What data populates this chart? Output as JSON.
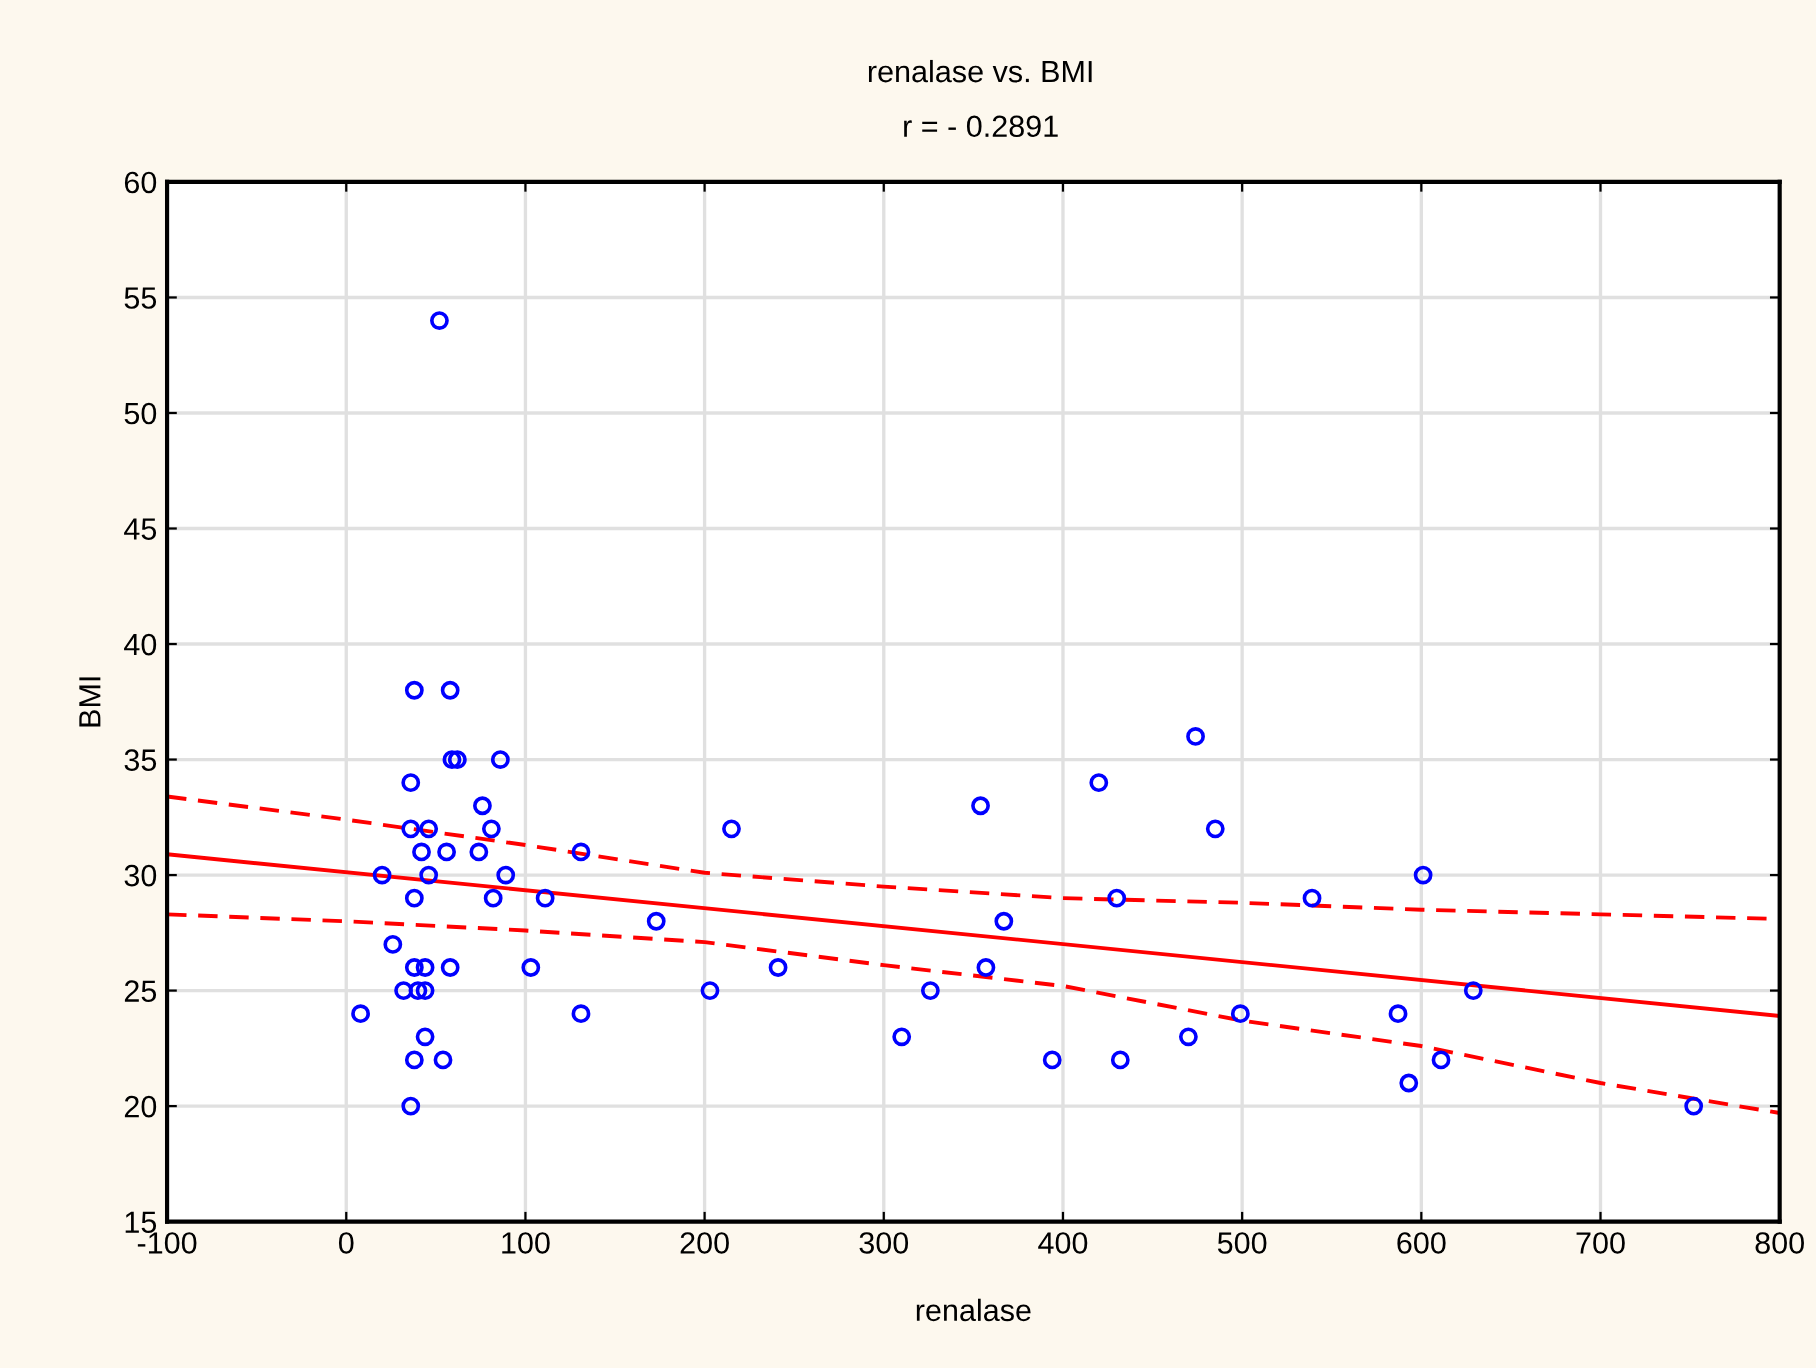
{
  "chart_data": {
    "type": "scatter",
    "title": "renalase vs. BMI",
    "subtitle": "r = - 0.2891",
    "xlabel": "renalase",
    "ylabel": "BMI",
    "xlim": [
      -100,
      800
    ],
    "xticks": [
      -100,
      0,
      100,
      200,
      300,
      400,
      500,
      600,
      700,
      800
    ],
    "ylim": [
      15,
      60
    ],
    "yticks": [
      15,
      20,
      25,
      30,
      35,
      40,
      45,
      50,
      55,
      60
    ],
    "grid": true,
    "marker": "circle",
    "series": [
      {
        "color": "#0000ff",
        "x": [
          52,
          38,
          58,
          59,
          62,
          86,
          36,
          76,
          36,
          46,
          81,
          42,
          56,
          74,
          131,
          20,
          46,
          89,
          38,
          82,
          111,
          26,
          38,
          44,
          58,
          103,
          32,
          40,
          44,
          8,
          131,
          44,
          38,
          54,
          36,
          173,
          215,
          203,
          241,
          310,
          326,
          354,
          367,
          357,
          394,
          420,
          430,
          432,
          470,
          474,
          485,
          499,
          539,
          601,
          587,
          593,
          611,
          629,
          752
        ],
        "values": [
          54,
          38,
          38,
          35,
          35,
          35,
          34,
          33,
          32,
          32,
          32,
          31,
          31,
          31,
          31,
          30,
          30,
          30,
          29,
          29,
          29,
          27,
          26,
          26,
          26,
          26,
          25,
          25,
          25,
          24,
          24,
          23,
          22,
          22,
          20,
          28,
          32,
          25,
          26,
          23,
          25,
          33,
          28,
          26,
          22,
          34,
          29,
          22,
          23,
          36,
          32,
          24,
          29,
          30,
          24,
          21,
          22,
          25,
          20
        ]
      },
      {
        "type": "line",
        "color": "#ff0000",
        "line_style": "solid",
        "marker": "none",
        "x": [
          -100,
          800
        ],
        "values": [
          30.9,
          23.9
        ]
      },
      {
        "type": "line",
        "color": "#ff0000",
        "line_style": "dashed",
        "marker": "none",
        "x": [
          -100,
          0,
          100,
          200,
          300,
          400,
          500,
          600,
          700,
          800
        ],
        "values": [
          33.4,
          32.4,
          31.3,
          30.1,
          29.5,
          29.0,
          28.8,
          28.5,
          28.3,
          28.1
        ]
      },
      {
        "type": "line",
        "color": "#ff0000",
        "line_style": "dashed",
        "marker": "none",
        "x": [
          -100,
          0,
          100,
          200,
          300,
          400,
          500,
          600,
          700,
          800
        ],
        "values": [
          28.3,
          28.0,
          27.6,
          27.1,
          26.1,
          25.2,
          23.7,
          22.6,
          21.0,
          19.7
        ]
      }
    ]
  }
}
